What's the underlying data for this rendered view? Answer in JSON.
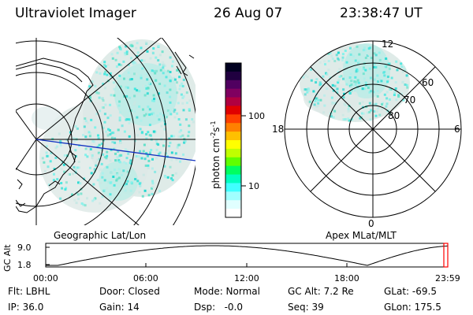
{
  "header": {
    "instrument": "Ultraviolet Imager",
    "date": "26 Aug 07",
    "time": "23:38:47 UT"
  },
  "colorbar": {
    "unit_label": "photon cm",
    "unit_exp1": "-2",
    "unit_s": "s",
    "unit_exp2": "-1",
    "ticks": [
      "100",
      "10"
    ],
    "colors": [
      "#000020",
      "#200040",
      "#500060",
      "#800060",
      "#b00040",
      "#e00000",
      "#ff4000",
      "#ff8000",
      "#ffc000",
      "#ffff00",
      "#c0ff00",
      "#60ff00",
      "#00ff60",
      "#00ffc0",
      "#40ffff",
      "#a0ffff",
      "#e0ffff",
      "#ffffff"
    ]
  },
  "panels": {
    "geo_label": "Geographic Lat/Lon",
    "apex_label": "Apex MLat/MLT",
    "polar_labels": {
      "mlt12": "12",
      "mlt18": "18",
      "mlt6": "6",
      "mlt0": "0",
      "lat60": "60",
      "lat70": "70",
      "lat80": "80"
    }
  },
  "orbit": {
    "ylabel": "GC Alt",
    "yticks": [
      "9.0",
      "1.8"
    ],
    "xticks": [
      "00:00",
      "06:00",
      "12:00",
      "18:00",
      "23:59"
    ],
    "marker_color": "#ff0000"
  },
  "info": {
    "row1": {
      "filter": "Flt: LBHL",
      "door": "Door: Closed",
      "mode": "Mode: Normal",
      "gcalt": "GC Alt: 7.2 Re",
      "glat": "GLat: -69.5"
    },
    "row2": {
      "ip": "IP: 36.0",
      "gain": "Gain: 14",
      "dsp": "Dsp:   -0.0",
      "seq": "Seq: 39",
      "glon": "GLon: 175.5"
    }
  }
}
